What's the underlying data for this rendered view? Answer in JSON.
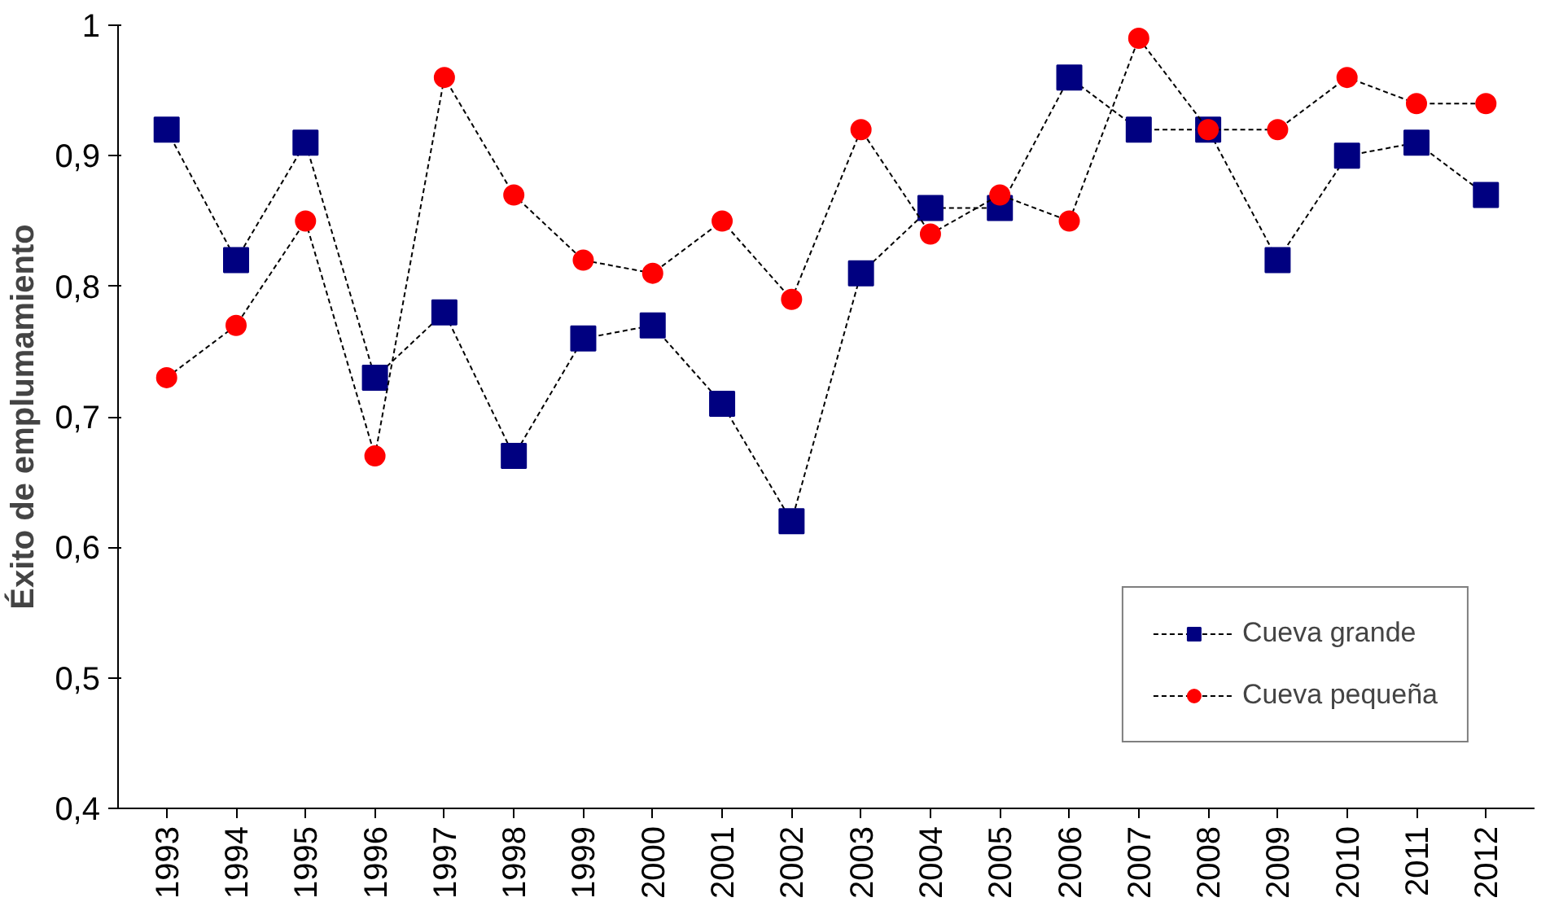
{
  "chart_data": {
    "type": "line",
    "ylabel": "Éxito de emplumamiento",
    "categories": [
      "1993",
      "1994",
      "1995",
      "1996",
      "1997",
      "1998",
      "1999",
      "2000",
      "2001",
      "2002",
      "2003",
      "2004",
      "2005",
      "2006",
      "2007",
      "2008",
      "2009",
      "2010",
      "2011",
      "2012"
    ],
    "ylim": [
      0.4,
      1.0
    ],
    "yticks": [
      {
        "value": 0.4,
        "label": "0,4"
      },
      {
        "value": 0.5,
        "label": "0,5"
      },
      {
        "value": 0.6,
        "label": "0,6"
      },
      {
        "value": 0.7,
        "label": "0,7"
      },
      {
        "value": 0.8,
        "label": "0,8"
      },
      {
        "value": 0.9,
        "label": "0,9"
      },
      {
        "value": 1.0,
        "label": "1"
      }
    ],
    "series": [
      {
        "name": "Cueva grande",
        "color": "#000080",
        "marker": "square",
        "values": [
          0.92,
          0.82,
          0.91,
          0.73,
          0.78,
          0.67,
          0.76,
          0.77,
          0.71,
          0.62,
          0.81,
          0.86,
          0.86,
          0.96,
          0.92,
          0.92,
          0.82,
          0.9,
          0.91,
          0.87
        ]
      },
      {
        "name": "Cueva pequeña",
        "color": "#ff0000",
        "marker": "circle",
        "values": [
          0.73,
          0.77,
          0.85,
          0.67,
          0.96,
          0.87,
          0.82,
          0.81,
          0.85,
          0.79,
          0.92,
          0.84,
          0.87,
          0.85,
          0.99,
          0.92,
          0.92,
          0.96,
          0.94,
          0.94
        ]
      }
    ],
    "line_style": "dashed",
    "grid": false,
    "legend": "bottom right"
  }
}
